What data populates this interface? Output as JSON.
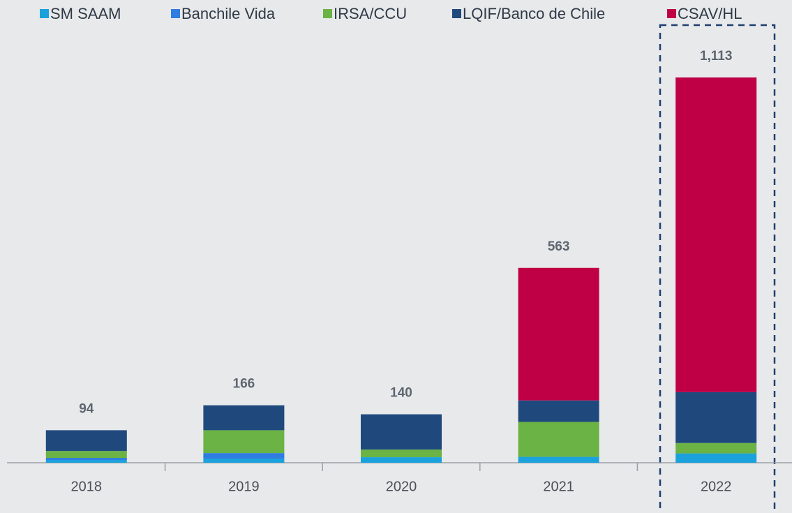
{
  "chart_data": {
    "type": "stacked_bar",
    "categories": [
      "2018",
      "2019",
      "2020",
      "2021",
      "2022"
    ],
    "series": [
      {
        "name": "SM SAAM",
        "color": "#1ba1dc",
        "values": [
          8,
          12,
          16,
          17,
          27
        ]
      },
      {
        "name": "Banchile Vida",
        "color": "#2f7de1",
        "values": [
          6,
          16,
          0,
          0,
          0
        ]
      },
      {
        "name": "IRSA/CCU",
        "color": "#6ab344",
        "values": [
          20,
          66,
          22,
          101,
          30
        ]
      },
      {
        "name": "LQIF/Banco de Chile",
        "color": "#1f497d",
        "values": [
          60,
          72,
          102,
          62,
          147
        ]
      },
      {
        "name": "CSAV/HL",
        "color": "#c00045",
        "values": [
          0,
          0,
          0,
          383,
          909
        ]
      }
    ],
    "totals": [
      94,
      166,
      140,
      563,
      1113
    ],
    "total_labels": [
      "94",
      "166",
      "140",
      "563",
      "1,113"
    ]
  }
}
